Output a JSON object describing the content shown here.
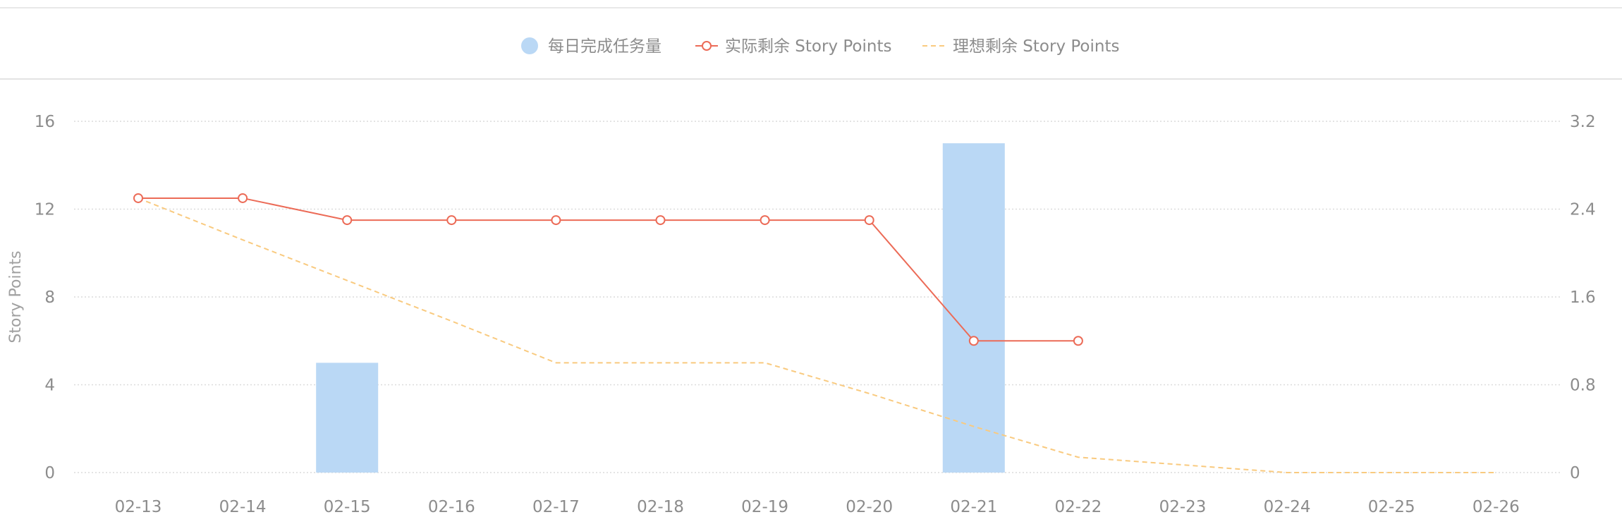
{
  "chart_data": {
    "type": "bar+line",
    "categories": [
      "02-13",
      "02-14",
      "02-15",
      "02-16",
      "02-17",
      "02-18",
      "02-19",
      "02-20",
      "02-21",
      "02-22",
      "02-23",
      "02-24",
      "02-25",
      "02-26"
    ],
    "series": [
      {
        "name": "每日完成任务量",
        "type": "bar",
        "axis": "left",
        "values": [
          0,
          0,
          5,
          0,
          0,
          0,
          0,
          0,
          15,
          0,
          null,
          null,
          null,
          null
        ]
      },
      {
        "name": "实际剩余 Story Points",
        "type": "line",
        "axis": "left",
        "values": [
          12.5,
          12.5,
          11.5,
          11.5,
          11.5,
          11.5,
          11.5,
          11.5,
          6,
          6,
          null,
          null,
          null,
          null
        ]
      },
      {
        "name": "理想剩余 Story Points",
        "type": "line",
        "style": "dashed",
        "axis": "left",
        "values": [
          12.5,
          10.6,
          8.75,
          6.9,
          5,
          5,
          5,
          3.6,
          2.1,
          0.7,
          null,
          0,
          0,
          0
        ]
      }
    ],
    "ylabel": "Story Points",
    "ylim": [
      0,
      16
    ],
    "yticks": [
      "0",
      "4",
      "8",
      "12",
      "16"
    ],
    "y2lim": [
      0,
      3.2
    ],
    "y2ticks": [
      "0",
      "0.8",
      "1.6",
      "2.4",
      "3.2"
    ],
    "grid": true,
    "legend_position": "top-center",
    "colors": {
      "bar": "#bad8f5",
      "actual": "#ec6b57",
      "ideal": "#f9ca7f",
      "grid": "#dcdcdc",
      "text": "#8c8c8c"
    }
  }
}
